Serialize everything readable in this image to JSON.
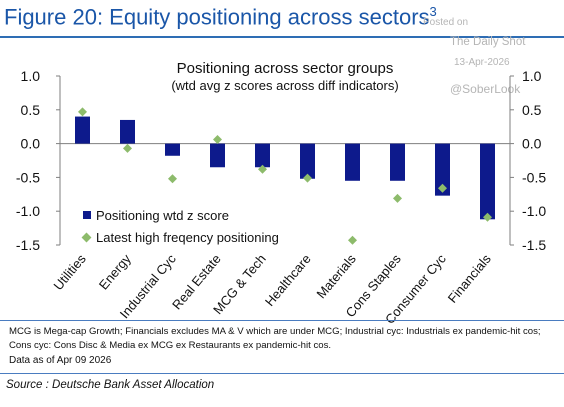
{
  "figure": {
    "title": "Figure 20: Equity positioning across sectors",
    "footnote_marker": "3"
  },
  "watermark": {
    "posted": "Posted on",
    "site": "The Daily Shot",
    "date": "13-Apr-2026",
    "handle": "@SoberLook"
  },
  "notes": {
    "line1": "MCG is Mega-cap Growth; Financials excludes MA & V which are under MCG;  Industrial cyc: Industrials ex pandemic-hit cos;",
    "line2": "Cons cyc: Cons Disc & Media ex MCG ex Restaurants ex pandemic-hit cos.",
    "data_as_of": "Data as of Apr 09 2026"
  },
  "source": "Source : Deutsche Bank Asset Allocation",
  "colors": {
    "accent": "#1a56a8",
    "bar": "#0d1a8c",
    "marker": "#8dbb6b",
    "axis": "#7f7f7f"
  },
  "chart_data": {
    "type": "bar",
    "title": "Positioning across sector groups",
    "subtitle": "(wtd avg z scores across diff indicators)",
    "categories": [
      "Utilities",
      "Energy",
      "Industrial Cyc",
      "Real Estate",
      "MCG & Tech",
      "Healthcare",
      "Materials",
      "Cons Staples",
      "Consumer Cyc",
      "Financials"
    ],
    "series": [
      {
        "name": "Positioning wtd z score",
        "kind": "bar",
        "values": [
          0.4,
          0.35,
          -0.18,
          -0.35,
          -0.35,
          -0.52,
          -0.55,
          -0.55,
          -0.77,
          -1.12
        ]
      },
      {
        "name": "Latest high freqency positioning",
        "kind": "marker",
        "values": [
          0.47,
          -0.07,
          -0.52,
          0.06,
          -0.38,
          -0.51,
          -1.43,
          -0.81,
          -0.66,
          -1.09
        ]
      }
    ],
    "ylim": [
      -1.5,
      1.0
    ],
    "yticks": [
      "1.0",
      "0.5",
      "0.0",
      "-0.5",
      "-1.0",
      "-1.5"
    ],
    "ytick_values": [
      1.0,
      0.5,
      0.0,
      -0.5,
      -1.0,
      -1.5
    ],
    "legend_position": "bottom-left",
    "grid": false,
    "secondary_y_axis": true
  }
}
